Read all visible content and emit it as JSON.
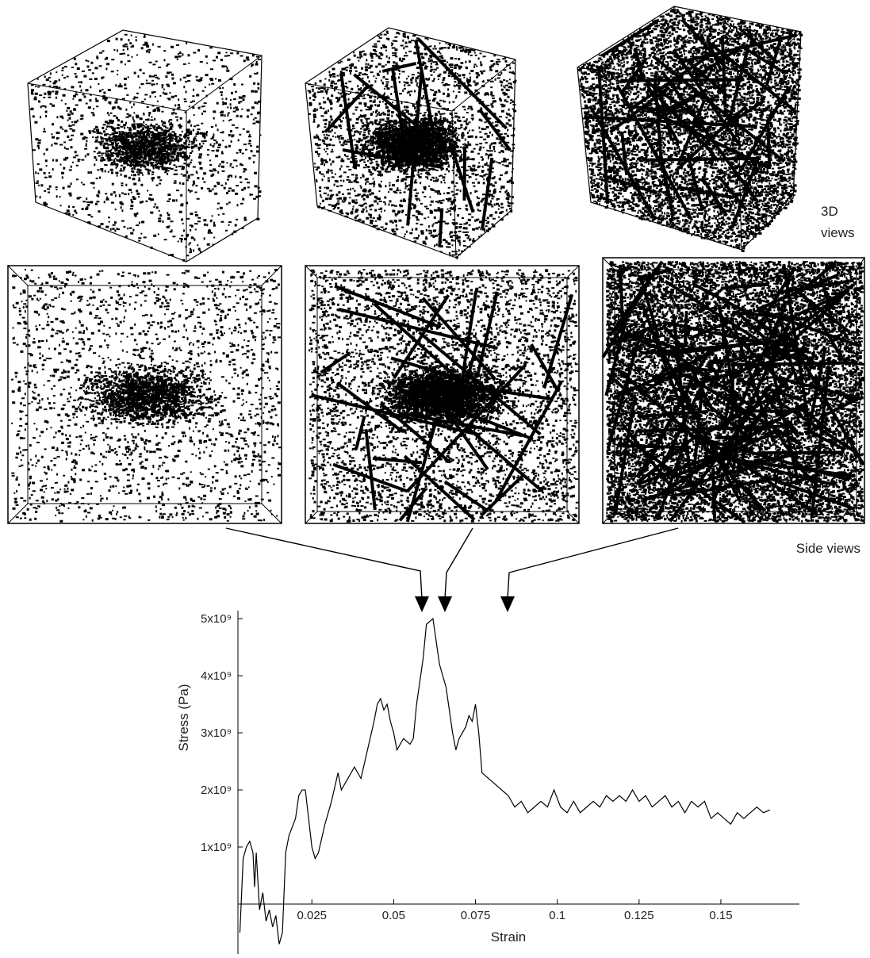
{
  "annotations": {
    "three_d_line1": "3D",
    "three_d_line2": "views",
    "side_views": "Side views"
  },
  "chart_data": {
    "type": "line",
    "x_label": "Strain",
    "y_label": "Stress (Pa)",
    "xlim": [
      0.0024,
      0.174
    ],
    "ylim": [
      -875000000.0,
      5140000000.0
    ],
    "xticks": [
      0.025,
      0.05,
      0.075,
      0.1,
      0.125,
      0.15
    ],
    "yticks": [
      {
        "value": 1000000000.0,
        "label": "1x10⁹"
      },
      {
        "value": 2000000000.0,
        "label": "2x10⁹"
      },
      {
        "value": 3000000000.0,
        "label": "3x10⁹"
      },
      {
        "value": 4000000000.0,
        "label": "4x10⁹"
      },
      {
        "value": 5000000000.0,
        "label": "5x10⁹"
      }
    ],
    "x": [
      0.003,
      0.004,
      0.005,
      0.006,
      0.007,
      0.0075,
      0.008,
      0.009,
      0.01,
      0.011,
      0.012,
      0.013,
      0.014,
      0.015,
      0.016,
      0.017,
      0.018,
      0.02,
      0.021,
      0.022,
      0.023,
      0.024,
      0.025,
      0.026,
      0.027,
      0.029,
      0.031,
      0.033,
      0.034,
      0.036,
      0.038,
      0.04,
      0.042,
      0.044,
      0.045,
      0.046,
      0.047,
      0.048,
      0.049,
      0.05,
      0.051,
      0.052,
      0.053,
      0.055,
      0.056,
      0.057,
      0.059,
      0.06,
      0.062,
      0.063,
      0.064,
      0.066,
      0.068,
      0.069,
      0.07,
      0.072,
      0.073,
      0.074,
      0.075,
      0.076,
      0.077,
      0.079,
      0.081,
      0.083,
      0.085,
      0.087,
      0.089,
      0.091,
      0.093,
      0.095,
      0.097,
      0.099,
      0.101,
      0.103,
      0.105,
      0.107,
      0.109,
      0.111,
      0.113,
      0.115,
      0.117,
      0.119,
      0.121,
      0.123,
      0.125,
      0.127,
      0.129,
      0.131,
      0.133,
      0.135,
      0.137,
      0.139,
      0.141,
      0.143,
      0.145,
      0.147,
      0.149,
      0.151,
      0.153,
      0.155,
      0.157,
      0.159,
      0.161,
      0.163,
      0.165
    ],
    "series": [
      {
        "color": "#000000",
        "values": [
          -500000000.0,
          800000000.0,
          1000000000.0,
          1100000000.0,
          900000000.0,
          300000000.0,
          900000000.0,
          -100000000.0,
          200000000.0,
          -300000000.0,
          -100000000.0,
          -400000000.0,
          -200000000.0,
          -700000000.0,
          -500000000.0,
          900000000.0,
          1200000000.0,
          1500000000.0,
          1900000000.0,
          2000000000.0,
          2000000000.0,
          1500000000.0,
          1000000000.0,
          800000000.0,
          900000000.0,
          1400000000.0,
          1800000000.0,
          2300000000.0,
          2000000000.0,
          2200000000.0,
          2400000000.0,
          2200000000.0,
          2700000000.0,
          3200000000.0,
          3500000000.0,
          3600000000.0,
          3400000000.0,
          3500000000.0,
          3200000000.0,
          3000000000.0,
          2700000000.0,
          2800000000.0,
          2900000000.0,
          2800000000.0,
          2900000000.0,
          3500000000.0,
          4300000000.0,
          4900000000.0,
          5000000000.0,
          4600000000.0,
          4200000000.0,
          3800000000.0,
          3000000000.0,
          2700000000.0,
          2900000000.0,
          3100000000.0,
          3300000000.0,
          3200000000.0,
          3500000000.0,
          3000000000.0,
          2300000000.0,
          2200000000.0,
          2100000000.0,
          2000000000.0,
          1900000000.0,
          1700000000.0,
          1800000000.0,
          1600000000.0,
          1700000000.0,
          1800000000.0,
          1700000000.0,
          2000000000.0,
          1700000000.0,
          1600000000.0,
          1800000000.0,
          1600000000.0,
          1700000000.0,
          1800000000.0,
          1700000000.0,
          1900000000.0,
          1800000000.0,
          1900000000.0,
          1800000000.0,
          2000000000.0,
          1800000000.0,
          1900000000.0,
          1700000000.0,
          1800000000.0,
          1900000000.0,
          1700000000.0,
          1800000000.0,
          1600000000.0,
          1800000000.0,
          1700000000.0,
          1800000000.0,
          1500000000.0,
          1600000000.0,
          1500000000.0,
          1400000000.0,
          1600000000.0,
          1500000000.0,
          1600000000.0,
          1700000000.0,
          1600000000.0,
          1650000000.0
        ]
      }
    ]
  }
}
